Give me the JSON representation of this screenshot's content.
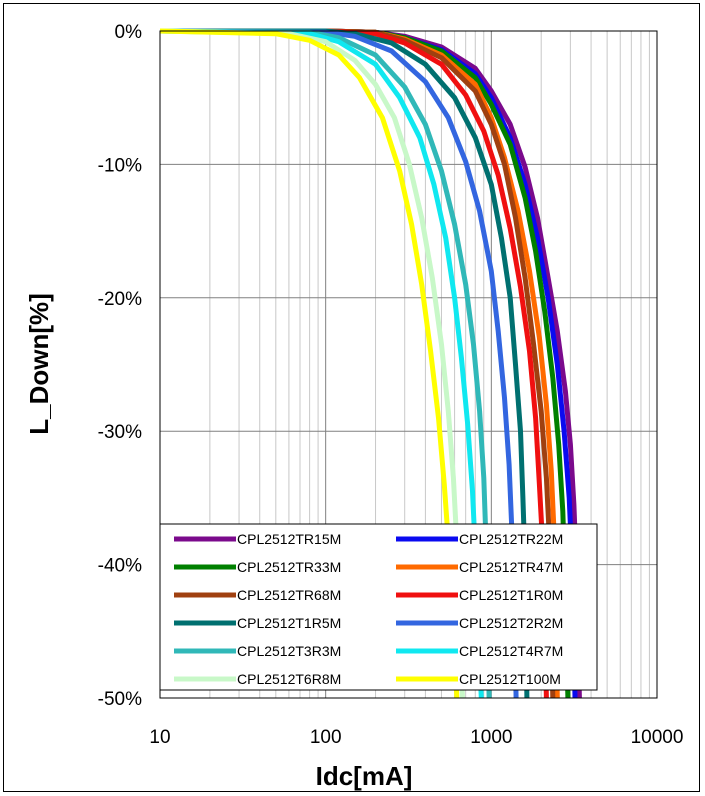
{
  "chart_data": {
    "type": "line",
    "title": "",
    "xlabel": "Idc[mA]",
    "ylabel": "L_Down[%]",
    "x_scale": "log",
    "xlim": [
      10,
      10000
    ],
    "ylim": [
      -50,
      0
    ],
    "x_ticks": [
      "10",
      "100",
      "1000",
      "10000"
    ],
    "y_ticks": [
      "0%",
      "-10%",
      "-20%",
      "-30%",
      "-40%",
      "-50%"
    ],
    "grid": true,
    "legend_position": "bottom",
    "series": [
      {
        "name": "CPL2512TR15M",
        "color": "#7B0A8C",
        "x": [
          10,
          100,
          200,
          300,
          500,
          800,
          1000,
          1300,
          1600,
          1900,
          2200,
          2500,
          2800,
          3000,
          3150,
          3300,
          3400
        ],
        "y": [
          0,
          0,
          -0.1,
          -0.4,
          -1.2,
          -2.8,
          -4.5,
          -7,
          -10.2,
          -14,
          -18.5,
          -22.5,
          -27,
          -31,
          -35.5,
          -42,
          -50
        ]
      },
      {
        "name": "CPL2512TR22M",
        "color": "#0A0AF0",
        "x": [
          10,
          100,
          200,
          300,
          500,
          800,
          1000,
          1300,
          1600,
          1900,
          2200,
          2500,
          2750,
          2950,
          3100,
          3200
        ],
        "y": [
          0,
          0,
          -0.1,
          -0.5,
          -1.4,
          -3.2,
          -5,
          -8,
          -11.5,
          -15.5,
          -20,
          -25,
          -30,
          -35,
          -41,
          -50
        ]
      },
      {
        "name": "CPL2512TR33M",
        "color": "#008000",
        "x": [
          10,
          100,
          200,
          300,
          500,
          800,
          1000,
          1300,
          1600,
          1850,
          2100,
          2350,
          2550,
          2700,
          2800,
          2900
        ],
        "y": [
          0,
          0,
          -0.1,
          -0.5,
          -1.5,
          -3.5,
          -5.5,
          -8.5,
          -12.5,
          -16.5,
          -21,
          -26,
          -31,
          -36,
          -42,
          -50
        ]
      },
      {
        "name": "CPL2512TR47M",
        "color": "#FF6A00",
        "x": [
          10,
          100,
          200,
          300,
          500,
          800,
          1000,
          1200,
          1450,
          1700,
          1950,
          2150,
          2300,
          2400,
          2450,
          2500
        ],
        "y": [
          0,
          0,
          -0.1,
          -0.6,
          -1.8,
          -4,
          -6.5,
          -9.5,
          -13.5,
          -18,
          -23,
          -28,
          -33,
          -38,
          -43,
          -50
        ]
      },
      {
        "name": "CPL2512TR68M",
        "color": "#A04010",
        "x": [
          10,
          100,
          200,
          300,
          500,
          800,
          1000,
          1200,
          1400,
          1600,
          1800,
          2000,
          2150,
          2250,
          2300,
          2350
        ],
        "y": [
          0,
          0,
          -0.1,
          -0.7,
          -2,
          -4.5,
          -7,
          -10,
          -14,
          -18.5,
          -23.5,
          -28.5,
          -33.5,
          -38.5,
          -44,
          -50
        ]
      },
      {
        "name": "CPL2512T1R0M",
        "color": "#F01010",
        "x": [
          10,
          100,
          200,
          300,
          500,
          700,
          900,
          1100,
          1300,
          1500,
          1700,
          1850,
          1950,
          2050,
          2100,
          2150
        ],
        "y": [
          0,
          0,
          -0.2,
          -0.9,
          -2.5,
          -4.8,
          -7.5,
          -10.8,
          -14.8,
          -19.2,
          -24,
          -29,
          -34,
          -39,
          -44,
          -50
        ]
      },
      {
        "name": "CPL2512T1R5M",
        "color": "#007070",
        "x": [
          10,
          100,
          150,
          250,
          400,
          600,
          800,
          1000,
          1150,
          1300,
          1400,
          1500,
          1550,
          1600,
          1620,
          1640
        ],
        "y": [
          0,
          0,
          -0.2,
          -0.9,
          -2.5,
          -5,
          -8,
          -11.5,
          -15.5,
          -20,
          -25,
          -30,
          -35,
          -40,
          -45,
          -50
        ]
      },
      {
        "name": "CPL2512T2R2M",
        "color": "#3366E0",
        "x": [
          10,
          100,
          150,
          250,
          400,
          550,
          700,
          850,
          1000,
          1100,
          1200,
          1280,
          1330,
          1370,
          1390,
          1410
        ],
        "y": [
          0,
          -0.1,
          -0.4,
          -1.5,
          -3.8,
          -6.5,
          -9.8,
          -13.5,
          -18,
          -22.5,
          -27.5,
          -32.5,
          -37.5,
          -42,
          -46,
          -50
        ]
      },
      {
        "name": "CPL2512T3R3M",
        "color": "#30B8B8",
        "x": [
          10,
          80,
          120,
          200,
          300,
          400,
          500,
          600,
          700,
          780,
          850,
          900,
          930,
          950,
          960,
          970
        ],
        "y": [
          0,
          -0.1,
          -0.5,
          -1.8,
          -4.2,
          -7,
          -10.5,
          -14.5,
          -19,
          -23.5,
          -28.5,
          -33.5,
          -38.5,
          -43,
          -46.5,
          -50
        ]
      },
      {
        "name": "CPL2512T4R7M",
        "color": "#10E8F0",
        "x": [
          10,
          80,
          120,
          200,
          280,
          370,
          450,
          530,
          600,
          660,
          720,
          770,
          800,
          830,
          850,
          870
        ],
        "y": [
          0,
          -0.2,
          -0.8,
          -2.5,
          -5,
          -8,
          -11.5,
          -15.5,
          -20,
          -24.5,
          -29.5,
          -34.5,
          -39,
          -43.5,
          -47,
          -50
        ]
      },
      {
        "name": "CPL2512T6R8M",
        "color": "#C8F8C8",
        "x": [
          10,
          60,
          100,
          150,
          200,
          260,
          320,
          380,
          440,
          500,
          550,
          590,
          620,
          640,
          655,
          670
        ],
        "y": [
          0,
          -0.2,
          -0.8,
          -2.2,
          -4,
          -6.5,
          -10,
          -14,
          -18.5,
          -23.5,
          -28.5,
          -33.5,
          -38.5,
          -43,
          -47,
          -50
        ]
      },
      {
        "name": "CPL2512T100M",
        "color": "#FFFF00",
        "x": [
          10,
          50,
          80,
          120,
          160,
          220,
          280,
          330,
          380,
          430,
          480,
          520,
          555,
          580,
          600,
          620
        ],
        "y": [
          0,
          -0.2,
          -0.7,
          -1.8,
          -3.5,
          -6.5,
          -10.5,
          -14.5,
          -19,
          -24,
          -29,
          -34,
          -39,
          -43.5,
          -47,
          -50
        ]
      }
    ]
  }
}
